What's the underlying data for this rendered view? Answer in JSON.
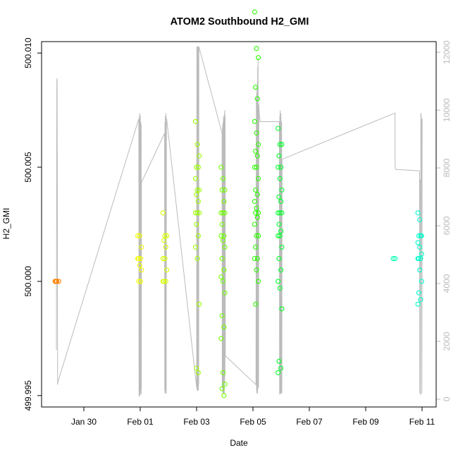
{
  "chart_data": {
    "type": "scatter",
    "title": "ATOM2 Southbound H2_GMI",
    "xlabel": "Date",
    "ylabel": "H2_GMI",
    "xlim": [
      "2016-01-28T12:00",
      "2016-02-11T12:00"
    ],
    "ylim": [
      499.9945,
      500.0105
    ],
    "y2lim": [
      -270,
      12370
    ],
    "x_ticks": [
      {
        "label": "Jan 30",
        "date": "2016-01-30T00:00"
      },
      {
        "label": "Feb 01",
        "date": "2016-02-01T00:00"
      },
      {
        "label": "Feb 03",
        "date": "2016-02-03T00:00"
      },
      {
        "label": "Feb 05",
        "date": "2016-02-05T00:00"
      },
      {
        "label": "Feb 07",
        "date": "2016-02-07T00:00"
      },
      {
        "label": "Feb 09",
        "date": "2016-02-09T00:00"
      },
      {
        "label": "Feb 11",
        "date": "2016-02-11T00:00"
      }
    ],
    "y_ticks": [
      {
        "label": "499.995",
        "value": 499.995
      },
      {
        "label": "500.000",
        "value": 500.0
      },
      {
        "label": "500.005",
        "value": 500.005
      },
      {
        "label": "500.010",
        "value": 500.01
      }
    ],
    "y2_ticks": [
      {
        "label": "0",
        "value": 0
      },
      {
        "label": "2000",
        "value": 2000
      },
      {
        "label": "4000",
        "value": 4000
      },
      {
        "label": "6000",
        "value": 6000
      },
      {
        "label": "8000",
        "value": 8000
      },
      {
        "label": "10000",
        "value": 10000
      },
      {
        "label": "12000",
        "value": 12000
      }
    ],
    "grid": false,
    "right_axis_color": "#bbbbbb",
    "altitude_line_color": "#bbbbbb",
    "point_groups": [
      {
        "date": "2016-01-29T01:00",
        "color": "#ff8000",
        "y": [
          500.0,
          500.0,
          500.0,
          500.0
        ]
      },
      {
        "date": "2016-01-31T23:30",
        "color": "#f0ff00",
        "y": [
          500.002,
          500.002,
          500.0015,
          500.001,
          500.001,
          500.001,
          500.0007,
          500.0005,
          500.0,
          500.0
        ]
      },
      {
        "date": "2016-02-01T21:00",
        "color": "#d8ff00",
        "y": [
          500.003,
          500.002,
          500.002,
          500.0018,
          500.0015,
          500.001,
          500.001,
          500.0005,
          500.0,
          500.0,
          500.0
        ]
      },
      {
        "date": "2016-02-03T00:40",
        "color": "#9cff00",
        "y": [
          500.007,
          500.006,
          500.0055,
          500.005,
          500.005,
          500.0045,
          500.004,
          500.004,
          500.0038,
          500.0035,
          500.003,
          500.003,
          500.003,
          500.0025,
          500.002,
          500.0015,
          500.001,
          499.999,
          499.9962,
          499.996
        ]
      },
      {
        "date": "2016-02-03T22:30",
        "color": "#6fff00",
        "y": [
          500.005,
          500.0045,
          500.004,
          500.004,
          500.0035,
          500.003,
          500.003,
          500.003,
          500.0025,
          500.002,
          500.002,
          500.0018,
          500.0015,
          500.001,
          500.0005,
          500.0002,
          500.0,
          499.9995,
          499.9985,
          499.998,
          499.9975,
          499.996,
          499.9955,
          499.9953,
          499.995
        ]
      },
      {
        "date": "2016-02-05T03:00",
        "color": "#2bff00",
        "y": [
          500.0118,
          500.0102,
          500.0098,
          500.0085,
          500.008,
          500.007,
          500.0065,
          500.006,
          500.0057,
          500.0055,
          500.005,
          500.005,
          500.0045,
          500.004,
          500.0038,
          500.0035,
          500.0032,
          500.003,
          500.003,
          500.0028,
          500.0025,
          500.002,
          500.002,
          500.0015,
          500.001,
          500.001,
          500.0005,
          500.0,
          499.999
        ]
      },
      {
        "date": "2016-02-05T23:00",
        "color": "#00ff2a",
        "y": [
          500.0067,
          500.006,
          500.006,
          500.0055,
          500.005,
          500.005,
          500.0045,
          500.004,
          500.0037,
          500.0035,
          500.003,
          500.003,
          500.003,
          500.0025,
          500.0022,
          500.002,
          500.002,
          500.0015,
          500.001,
          500.0005,
          500.0,
          499.9997,
          499.9988,
          499.9965,
          499.9962,
          499.996
        ]
      },
      {
        "date": "2016-02-10T01:00",
        "color": "#00ffb0",
        "y": [
          500.001,
          500.001
        ]
      },
      {
        "date": "2016-02-10T22:00",
        "color": "#00ffcc",
        "y": [
          500.003,
          500.0027,
          500.002,
          500.002,
          500.002,
          500.0017,
          500.0015,
          500.0012,
          500.001,
          500.001,
          500.001,
          500.0005,
          500.0,
          499.9995,
          499.9992,
          499.999
        ]
      }
    ],
    "altitude_series": {
      "name": "",
      "axis": "right",
      "dates": [
        "2016-01-29T00:36",
        "2016-01-29T01:00",
        "2016-01-29T01:14",
        "2016-01-29T01:40",
        "2016-01-29T01:55",
        "2016-01-31T22:48",
        "2016-01-31T23:00",
        "2016-01-31T23:05",
        "2016-01-31T23:12",
        "2016-01-31T23:19",
        "2016-01-31T23:26",
        "2016-01-31T23:33",
        "2016-01-31T23:40",
        "2016-01-31T23:47",
        "2016-01-31T23:55",
        "2016-02-01T00:05",
        "2016-02-01T00:12",
        "2016-02-01T00:20",
        "2016-02-01T00:26",
        "2016-02-01T00:34",
        "2016-02-01T00:42",
        "2016-02-01T00:50",
        "2016-02-01T00:56",
        "2016-02-01T01:04",
        "2016-02-01T20:44",
        "2016-02-01T20:53",
        "2016-02-01T21:02",
        "2016-02-01T21:12",
        "2016-02-01T21:21",
        "2016-02-01T21:30",
        "2016-02-01T21:40",
        "2016-02-01T21:50",
        "2016-02-01T22:01",
        "2016-02-01T22:10",
        "2016-02-01T22:20",
        "2016-02-01T22:29",
        "2016-02-03T00:05",
        "2016-02-03T00:14",
        "2016-02-03T00:22",
        "2016-02-03T00:31",
        "2016-02-03T00:39",
        "2016-02-03T00:48",
        "2016-02-03T00:56",
        "2016-02-03T01:05",
        "2016-02-03T01:13",
        "2016-02-03T01:22",
        "2016-02-03T01:30",
        "2016-02-03T01:39",
        "2016-02-03T01:48",
        "2016-02-03T01:56",
        "2016-02-03T21:43",
        "2016-02-03T21:52",
        "2016-02-03T22:00",
        "2016-02-03T22:09",
        "2016-02-03T22:17",
        "2016-02-03T22:26",
        "2016-02-03T22:35",
        "2016-02-03T22:43",
        "2016-02-03T22:52",
        "2016-02-03T23:01",
        "2016-02-03T23:09",
        "2016-02-03T23:18",
        "2016-02-03T23:26",
        "2016-02-03T23:35",
        "2016-02-03T23:44",
        "2016-02-03T23:52",
        "2016-02-04T00:01",
        "2016-02-04T00:10",
        "2016-02-04T00:18",
        "2016-02-04T00:27",
        "2016-02-05T02:36",
        "2016-02-05T02:53",
        "2016-02-05T03:02",
        "2016-02-05T03:10",
        "2016-02-05T03:19",
        "2016-02-05T03:27",
        "2016-02-05T03:36",
        "2016-02-05T03:45",
        "2016-02-05T03:53",
        "2016-02-05T04:02",
        "2016-02-05T04:10",
        "2016-02-05T04:19",
        "2016-02-05T04:28",
        "2016-02-05T04:45",
        "2016-02-05T05:02",
        "2016-02-05T05:19",
        "2016-02-05T05:36",
        "2016-02-05T05:54",
        "2016-02-05T06:11",
        "2016-02-05T22:31",
        "2016-02-05T22:41",
        "2016-02-05T22:50",
        "2016-02-05T23:00",
        "2016-02-05T23:10",
        "2016-02-05T23:19",
        "2016-02-05T23:29",
        "2016-02-05T23:38",
        "2016-02-05T23:48",
        "2016-02-05T23:58",
        "2016-02-06T00:07",
        "2016-02-06T00:17",
        "2016-02-06T00:26",
        "2016-02-06T00:36",
        "2016-02-06T00:46",
        "2016-02-10T00:57",
        "2016-02-10T01:05",
        "2016-02-10T01:22",
        "2016-02-10T21:50",
        "2016-02-10T22:07",
        "2016-02-10T22:24",
        "2016-02-10T22:40",
        "2016-02-10T22:57",
        "2016-02-10T23:14",
        "2016-02-10T23:31",
        "2016-02-10T23:48",
        "2016-02-11T00:05"
      ],
      "values": [
        1700,
        11000,
        11100,
        500,
        600,
        9700,
        100,
        9600,
        200,
        9800,
        300,
        9900,
        100,
        9500,
        200,
        9800,
        200,
        9400,
        1000,
        9600,
        150,
        9500,
        300,
        7500,
        9200,
        300,
        9600,
        200,
        9800,
        200,
        9500,
        300,
        9900,
        200,
        9700,
        9700,
        400,
        12200,
        300,
        12200,
        350,
        12200,
        300,
        12200,
        400,
        12200,
        300,
        12200,
        500,
        12200,
        9200,
        400,
        9400,
        300,
        9500,
        200,
        9600,
        300,
        9800,
        200,
        9700,
        300,
        9600,
        200,
        9900,
        500,
        10000,
        800,
        9800,
        1500,
        500,
        10400,
        300,
        10600,
        200,
        10800,
        300,
        11000,
        200,
        11500,
        350,
        11800,
        9700,
        400,
        10200,
        9900,
        9800,
        9700,
        9600,
        9600,
        200,
        9800,
        150,
        10000,
        200,
        9700,
        300,
        9900,
        200,
        9500,
        300,
        9600,
        200,
        8300,
        9900,
        8000,
        7950,
        7900,
        200,
        7600,
        150,
        9900,
        9800,
        9600,
        200,
        9700
      ]
    }
  }
}
